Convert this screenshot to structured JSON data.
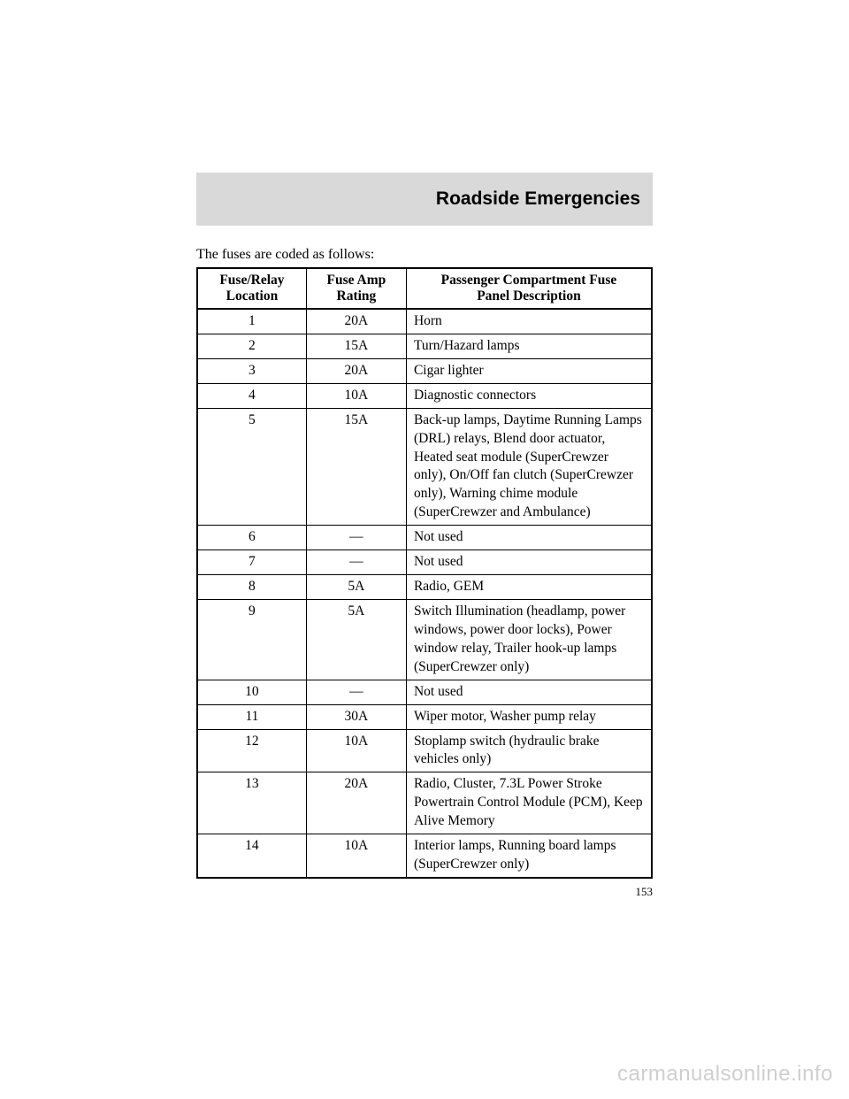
{
  "header": {
    "title": "Roadside Emergencies"
  },
  "intro": "The fuses are coded as follows:",
  "table": {
    "columns": {
      "col1_line1": "Fuse/Relay",
      "col1_line2": "Location",
      "col2_line1": "Fuse Amp",
      "col2_line2": "Rating",
      "col3_line1": "Passenger Compartment Fuse",
      "col3_line2": "Panel Description"
    },
    "rows": [
      {
        "loc": "1",
        "amp": "20A",
        "desc": "Horn"
      },
      {
        "loc": "2",
        "amp": "15A",
        "desc": "Turn/Hazard lamps"
      },
      {
        "loc": "3",
        "amp": "20A",
        "desc": "Cigar lighter"
      },
      {
        "loc": "4",
        "amp": "10A",
        "desc": "Diagnostic connectors"
      },
      {
        "loc": "5",
        "amp": "15A",
        "desc": "Back-up lamps, Daytime Running Lamps (DRL) relays, Blend door actuator, Heated seat module (SuperCrewzer only), On/Off fan clutch (SuperCrewzer only), Warning chime module (SuperCrewzer and Ambulance)"
      },
      {
        "loc": "6",
        "amp": "—",
        "desc": "Not used"
      },
      {
        "loc": "7",
        "amp": "—",
        "desc": "Not used"
      },
      {
        "loc": "8",
        "amp": "5A",
        "desc": "Radio, GEM"
      },
      {
        "loc": "9",
        "amp": "5A",
        "desc": "Switch Illumination (headlamp, power windows, power door locks), Power window relay, Trailer hook-up lamps (SuperCrewzer only)"
      },
      {
        "loc": "10",
        "amp": "—",
        "desc": "Not used"
      },
      {
        "loc": "11",
        "amp": "30A",
        "desc": "Wiper motor, Washer pump relay"
      },
      {
        "loc": "12",
        "amp": "10A",
        "desc": "Stoplamp switch (hydraulic brake vehicles only)"
      },
      {
        "loc": "13",
        "amp": "20A",
        "desc": "Radio, Cluster, 7.3L Power Stroke Powertrain Control Module (PCM), Keep Alive Memory"
      },
      {
        "loc": "14",
        "amp": "10A",
        "desc": "Interior lamps, Running board lamps (SuperCrewzer only)"
      }
    ]
  },
  "pageNumber": "153",
  "watermark": "carmanualsonline.info",
  "style": {
    "page_bg": "#ffffff",
    "header_bg": "#d9d9d9",
    "border_color": "#000000",
    "watermark_color": "#cfcfcf",
    "body_font_size": 15.5,
    "header_font_size": 21
  }
}
